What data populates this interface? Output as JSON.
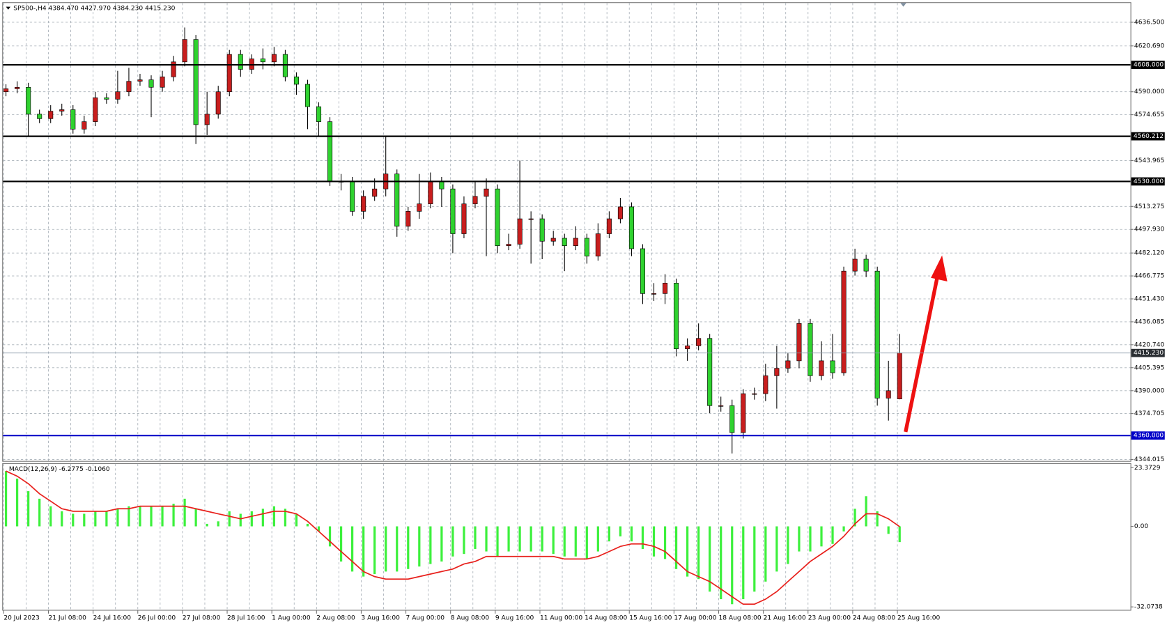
{
  "chart_data": {
    "type": "candlestick",
    "title": "SP500-,H4 4384.470 4427.970 4384.230 4415.230",
    "categories": [
      "20 Jul 2023",
      null,
      null,
      null,
      "21 Jul 08:00",
      null,
      null,
      null,
      "24 Jul 16:00",
      null,
      null,
      null,
      "26 Jul 00:00",
      null,
      null,
      null,
      "27 Jul 08:00",
      null,
      null,
      null,
      "28 Jul 16:00",
      null,
      null,
      null,
      "1 Aug 00:00",
      null,
      null,
      null,
      "2 Aug 08:00",
      null,
      null,
      null,
      "3 Aug 16:00",
      null,
      null,
      null,
      "7 Aug 00:00",
      null,
      null,
      null,
      "8 Aug 08:00",
      null,
      null,
      null,
      "9 Aug 16:00",
      null,
      null,
      null,
      "11 Aug 00:00",
      null,
      null,
      null,
      "14 Aug 08:00",
      null,
      null,
      null,
      "15 Aug 16:00",
      null,
      null,
      null,
      "17 Aug 00:00",
      null,
      null,
      null,
      "18 Aug 08:00",
      null,
      null,
      null,
      "21 Aug 16:00",
      null,
      null,
      null,
      "23 Aug 00:00",
      null,
      null,
      null,
      "24 Aug 08:00",
      null,
      null,
      null,
      "25 Aug 16:00"
    ],
    "open": [
      4590,
      4592,
      4593,
      4575,
      4572,
      4577,
      4578,
      4565,
      4570,
      4586,
      4585,
      4590,
      4597,
      4598,
      4593,
      4600,
      4610,
      4625,
      4568,
      4575,
      4590,
      4615,
      4605,
      4612,
      4610,
      4615,
      4600,
      4595,
      4580,
      4570,
      4530,
      4530,
      4510,
      4520,
      4525,
      4535,
      4500,
      4510,
      4515,
      4530,
      4525,
      4495,
      4515,
      4520,
      4525,
      4487,
      4488,
      4505,
      4505,
      4490,
      4492,
      4487,
      4492,
      4480,
      4495,
      4505,
      4513,
      4485,
      4455,
      4455,
      4462,
      4418,
      4420,
      4425,
      4380,
      4380,
      4362,
      4388,
      4388,
      4400,
      4405,
      4410,
      4435,
      4400,
      4410,
      4402,
      4470,
      4478,
      4470,
      4385,
      4384.47
    ],
    "high": [
      4595,
      4597,
      4596,
      4578,
      4581,
      4582,
      4581,
      4574,
      4590,
      4589,
      4604,
      4606,
      4602,
      4601,
      4604,
      4614,
      4633,
      4628,
      4590,
      4594,
      4618,
      4618,
      4615,
      4619,
      4620,
      4618,
      4603,
      4598,
      4583,
      4573,
      4535,
      4533,
      4524,
      4532,
      4560,
      4538,
      4513,
      4535,
      4536,
      4533,
      4528,
      4520,
      4530,
      4532,
      4528,
      4495,
      4544,
      4510,
      4508,
      4497,
      4495,
      4500,
      4495,
      4502,
      4510,
      4519,
      4516,
      4488,
      4462,
      4468,
      4465,
      4425,
      4435,
      4428,
      4386,
      4384,
      4391,
      4392,
      4408,
      4420,
      4415,
      4438,
      4438,
      4423,
      4428,
      4473,
      4485,
      4481,
      4473,
      4410,
      4427.97
    ],
    "low": [
      4587,
      4589,
      4560,
      4569,
      4569,
      4574,
      4562,
      4562,
      4567,
      4582,
      4582,
      4587,
      4594,
      4573,
      4590,
      4597,
      4607,
      4555,
      4561,
      4572,
      4587,
      4600,
      4602,
      4605,
      4607,
      4597,
      4588,
      4565,
      4560,
      4527,
      4524,
      4507,
      4505,
      4517,
      4520,
      4493,
      4497,
      4505,
      4512,
      4513,
      4482,
      4492,
      4512,
      4480,
      4482,
      4484,
      4485,
      4475,
      4478,
      4487,
      4470,
      4484,
      4475,
      4477,
      4492,
      4502,
      4480,
      4448,
      4450,
      4448,
      4413,
      4410,
      4417,
      4375,
      4376,
      4348,
      4358,
      4384,
      4383,
      4378,
      4402,
      4405,
      4396,
      4397,
      4398,
      4400,
      4467,
      4466,
      4380,
      4370,
      4384.23
    ],
    "close": [
      4592,
      4593,
      4575,
      4572,
      4577,
      4578,
      4565,
      4570,
      4586,
      4585,
      4590,
      4597,
      4598,
      4593,
      4600,
      4610,
      4625,
      4568,
      4575,
      4590,
      4615,
      4605,
      4612,
      4610,
      4615,
      4600,
      4595,
      4580,
      4570,
      4530,
      4530,
      4510,
      4520,
      4525,
      4535,
      4500,
      4510,
      4515,
      4530,
      4525,
      4495,
      4515,
      4520,
      4525,
      4487,
      4488,
      4505,
      4505,
      4490,
      4492,
      4487,
      4492,
      4480,
      4495,
      4505,
      4513,
      4485,
      4455,
      4455,
      4462,
      4418,
      4420,
      4425,
      4380,
      4380,
      4362,
      4388,
      4388,
      4400,
      4405,
      4410,
      4435,
      4400,
      4410,
      4402,
      4470,
      4478,
      4470,
      4385,
      4390,
      4415.23
    ],
    "up_color": "#c81e1e",
    "down_color": "#2fd22f",
    "ylim": [
      4342.5,
      4648.9
    ],
    "yticks": [
      {
        "value": 4636.5,
        "label": "4636.500"
      },
      {
        "value": 4620.69,
        "label": "4620.690"
      },
      {
        "value": 4590,
        "label": "4590.000"
      },
      {
        "value": 4574.655,
        "label": "4574.655"
      },
      {
        "value": 4543.965,
        "label": "4543.965"
      },
      {
        "value": 4513.275,
        "label": "4513.275"
      },
      {
        "value": 4497.93,
        "label": "4497.930"
      },
      {
        "value": 4482.12,
        "label": "4482.120"
      },
      {
        "value": 4466.775,
        "label": "4466.775"
      },
      {
        "value": 4451.43,
        "label": "4451.430"
      },
      {
        "value": 4436.085,
        "label": "4436.085"
      },
      {
        "value": 4420.74,
        "label": "4420.740"
      },
      {
        "value": 4405.395,
        "label": "4405.395"
      },
      {
        "value": 4390,
        "label": "4390.000"
      },
      {
        "value": 4374.705,
        "label": "4374.705"
      },
      {
        "value": 4344.015,
        "label": "4344.015"
      }
    ],
    "grid": true,
    "levels": [
      {
        "value": 4608,
        "label": "4608.000",
        "color": "#000000"
      },
      {
        "value": 4560.212,
        "label": "4560.212",
        "color": "#000000"
      },
      {
        "value": 4530,
        "label": "4530.000",
        "color": "#000000"
      },
      {
        "value": 4360,
        "label": "4360.000",
        "color": "#0000c8"
      }
    ],
    "last_price": {
      "value": 4415.23,
      "label": "4415.230",
      "color": "#8a9aa8"
    },
    "indicator": {
      "type": "macd",
      "title": "MACD(12,26,9) -6.2775 -0.1060",
      "histogram": {
        "color": "#3cf03c",
        "values": [
          22,
          19,
          14,
          11,
          8,
          6,
          5,
          5,
          6,
          6,
          7,
          8,
          8,
          8,
          8,
          9,
          11,
          7,
          1,
          2,
          6,
          5,
          6,
          7,
          8,
          7,
          5,
          1,
          -2,
          -8,
          -14,
          -18,
          -20,
          -19,
          -18,
          -18,
          -17,
          -16,
          -15,
          -14,
          -12,
          -11,
          -9,
          -10,
          -12,
          -10,
          -10,
          -10,
          -10,
          -11,
          -12,
          -12,
          -13,
          -10,
          -6,
          -4,
          -6,
          -9,
          -12,
          -13,
          -17,
          -20,
          -21,
          -26,
          -29,
          -31,
          -29,
          -26,
          -22,
          -18,
          -15,
          -10,
          -10,
          -8,
          -7,
          -2,
          7,
          12,
          6,
          -3,
          -6.2775
        ]
      },
      "signal": {
        "color": "#e8201c",
        "values": [
          22,
          20,
          17,
          13,
          10,
          7,
          6,
          6,
          6,
          6,
          7,
          7,
          8,
          8,
          8,
          8,
          8,
          7,
          6,
          5,
          4,
          3,
          4,
          5,
          6,
          6,
          5,
          2,
          -2,
          -6,
          -10,
          -14,
          -18,
          -20,
          -21,
          -21,
          -21,
          -20,
          -19,
          -18,
          -17,
          -15,
          -14,
          -12,
          -12,
          -12,
          -12,
          -12,
          -12,
          -12,
          -13,
          -13,
          -13,
          -12,
          -10,
          -8,
          -7,
          -7,
          -8,
          -10,
          -14,
          -18,
          -20,
          -22,
          -25,
          -28,
          -31,
          -31,
          -29,
          -26,
          -22,
          -18,
          -14,
          -11,
          -8,
          -4,
          1,
          5,
          5,
          3,
          -0.106
        ]
      },
      "ylim": [
        -32.0738,
        23.3729
      ],
      "yticks": [
        23.3729,
        {
          "value": 0,
          "label": "0.00"
        },
        -32.0738
      ]
    }
  }
}
